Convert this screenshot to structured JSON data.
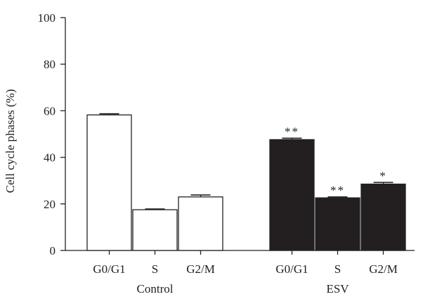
{
  "chart_data": {
    "type": "bar",
    "ylabel": "Cell cycle phases (%)",
    "ylim": [
      0,
      100
    ],
    "yticks": [
      0,
      20,
      40,
      60,
      80,
      100
    ],
    "groups": [
      {
        "name": "Control",
        "fill": "#ffffff",
        "categories": [
          "G0/G1",
          "S",
          "G2/M"
        ],
        "values": [
          58.2,
          17.5,
          23.0
        ],
        "errors": [
          0.5,
          0.3,
          0.8
        ],
        "significance": [
          "",
          "",
          ""
        ]
      },
      {
        "name": "ESV",
        "fill": "#231f20",
        "categories": [
          "G0/G1",
          "S",
          "G2/M"
        ],
        "values": [
          47.6,
          22.6,
          28.5
        ],
        "errors": [
          0.6,
          0.4,
          0.7
        ],
        "significance": [
          "**",
          "**",
          "*"
        ]
      }
    ],
    "grid": false,
    "legend": "none"
  }
}
